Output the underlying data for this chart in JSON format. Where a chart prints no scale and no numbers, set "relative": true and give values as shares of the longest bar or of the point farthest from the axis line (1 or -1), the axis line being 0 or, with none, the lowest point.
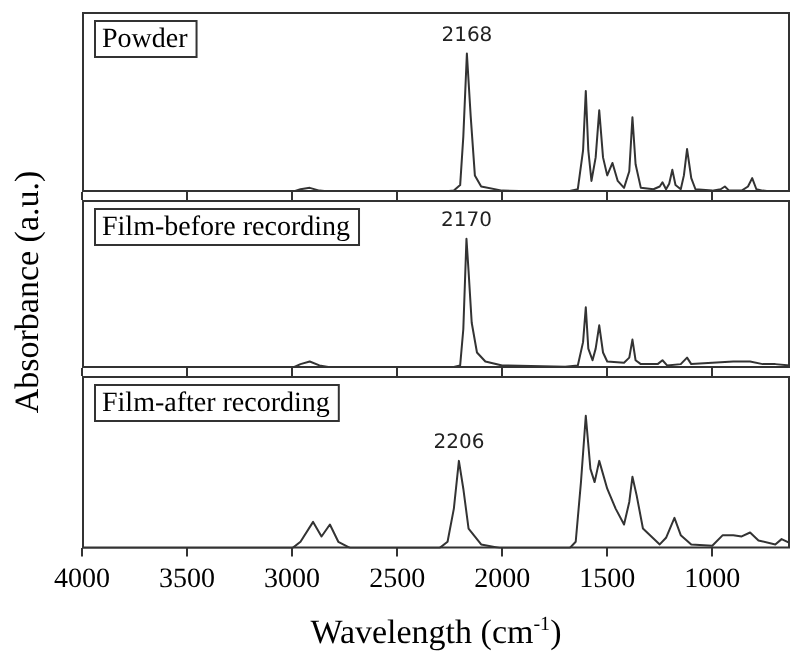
{
  "chart_data": [
    {
      "type": "line",
      "title": "Powder",
      "ylabel": "Absorbance (a.u.)",
      "relative": true,
      "tick_labels": false,
      "xlim": [
        4000,
        630
      ],
      "xticks": [
        4000,
        3500,
        3000,
        2500,
        2000,
        1500,
        1000
      ],
      "x": [
        4000,
        3000,
        2960,
        2916,
        2870,
        2800,
        2300,
        2230,
        2200,
        2185,
        2168,
        2150,
        2130,
        2100,
        2000,
        1700,
        1640,
        1615,
        1602,
        1590,
        1575,
        1555,
        1538,
        1520,
        1500,
        1475,
        1450,
        1420,
        1395,
        1380,
        1365,
        1340,
        1280,
        1250,
        1237,
        1220,
        1205,
        1190,
        1175,
        1150,
        1135,
        1120,
        1100,
        1080,
        1000,
        960,
        940,
        920,
        860,
        830,
        810,
        790,
        760,
        700,
        630
      ],
      "series": [
        {
          "color": "#333333",
          "values": [
            0,
            0,
            0.02,
            0.03,
            0.01,
            0,
            0,
            0.01,
            0.05,
            0.4,
            1,
            0.55,
            0.12,
            0.04,
            0.01,
            0,
            0.02,
            0.3,
            0.73,
            0.3,
            0.08,
            0.25,
            0.59,
            0.25,
            0.12,
            0.21,
            0.08,
            0.03,
            0.15,
            0.54,
            0.2,
            0.03,
            0.02,
            0.04,
            0.07,
            0.02,
            0.06,
            0.16,
            0.05,
            0.02,
            0.12,
            0.31,
            0.1,
            0.02,
            0.01,
            0.02,
            0.04,
            0.01,
            0.01,
            0.04,
            0.1,
            0.02,
            0.01,
            0,
            0
          ]
        }
      ],
      "annotations": [
        {
          "text": "2168",
          "x": 2168,
          "y": 1
        }
      ]
    },
    {
      "type": "line",
      "title": "Film-before recording",
      "relative": true,
      "tick_labels": false,
      "xlim": [
        4000,
        630
      ],
      "xticks": [
        4000,
        3500,
        3000,
        2500,
        2000,
        1500,
        1000
      ],
      "x": [
        4000,
        3000,
        2960,
        2916,
        2870,
        2800,
        2250,
        2200,
        2185,
        2170,
        2160,
        2145,
        2120,
        2080,
        2000,
        1700,
        1640,
        1615,
        1602,
        1590,
        1570,
        1555,
        1538,
        1520,
        1500,
        1420,
        1395,
        1380,
        1365,
        1340,
        1260,
        1237,
        1215,
        1150,
        1120,
        1100,
        1000,
        900,
        820,
        760,
        700,
        630
      ],
      "series": [
        {
          "color": "#333333",
          "values": [
            0,
            0,
            0.03,
            0.05,
            0.02,
            0,
            0,
            0.02,
            0.3,
            1,
            0.75,
            0.35,
            0.12,
            0.05,
            0.02,
            0.01,
            0.02,
            0.2,
            0.47,
            0.15,
            0.06,
            0.15,
            0.33,
            0.12,
            0.05,
            0.04,
            0.08,
            0.22,
            0.06,
            0.03,
            0.03,
            0.06,
            0.02,
            0.03,
            0.08,
            0.03,
            0.04,
            0.05,
            0.05,
            0.03,
            0.03,
            0.02
          ]
        }
      ],
      "annotations": [
        {
          "text": "2170",
          "x": 2170,
          "y": 1
        }
      ]
    },
    {
      "type": "line",
      "title": "Film-after recording",
      "xlabel": "Wavelength (cm$^{-1}$)",
      "relative": true,
      "tick_labels": "x",
      "xlim": [
        4000,
        630
      ],
      "xticks": [
        4000,
        3500,
        3000,
        2500,
        2000,
        1500,
        1000
      ],
      "x": [
        4000,
        3000,
        2960,
        2900,
        2860,
        2820,
        2780,
        2720,
        2300,
        2260,
        2230,
        2206,
        2185,
        2160,
        2100,
        2000,
        1680,
        1650,
        1625,
        1602,
        1580,
        1560,
        1538,
        1500,
        1460,
        1420,
        1395,
        1380,
        1360,
        1330,
        1250,
        1220,
        1180,
        1150,
        1100,
        1000,
        950,
        900,
        860,
        820,
        780,
        700,
        670,
        630
      ],
      "series": [
        {
          "color": "#333333",
          "values": [
            0,
            0,
            0.05,
            0.2,
            0.09,
            0.18,
            0.05,
            0,
            0,
            0.05,
            0.3,
            0.66,
            0.45,
            0.15,
            0.03,
            0,
            0,
            0.05,
            0.5,
            1,
            0.6,
            0.5,
            0.66,
            0.45,
            0.3,
            0.18,
            0.35,
            0.54,
            0.4,
            0.15,
            0.03,
            0.08,
            0.23,
            0.1,
            0.03,
            0.02,
            0.1,
            0.1,
            0.09,
            0.12,
            0.06,
            0.03,
            0.07,
            0.04
          ]
        }
      ],
      "annotations": [
        {
          "text": "2206",
          "x": 2206,
          "y": 0.66
        }
      ]
    }
  ]
}
